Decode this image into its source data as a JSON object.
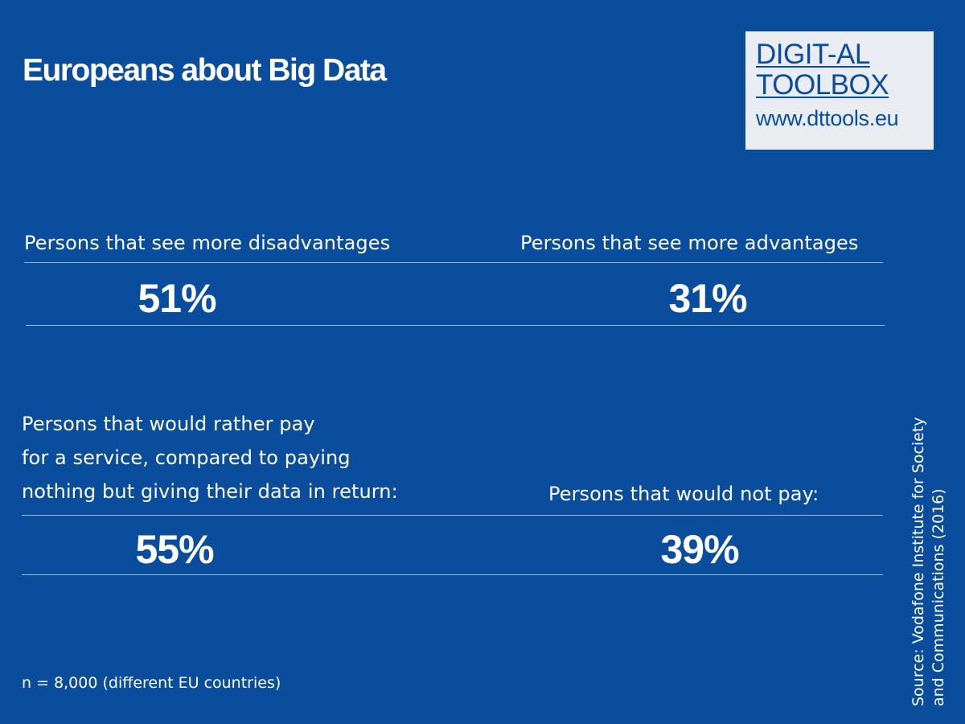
{
  "title": "Europeans about Big Data",
  "logo": {
    "line1": "DIGIT-AL",
    "line2": "TOOLBOX",
    "url": "www.dttools.eu"
  },
  "stats": {
    "disadvantages": {
      "label": "Persons that see more disadvantages",
      "value": "51%"
    },
    "advantages": {
      "label": "Persons that see more advantages",
      "value": "31%"
    },
    "pay": {
      "label_lines": [
        "Persons that would rather pay",
        "for a service, compared to paying",
        "nothing but giving their data in return:"
      ],
      "value": "55%"
    },
    "not_pay": {
      "label": "Persons that would not pay:",
      "value": "39%"
    }
  },
  "footnote": "n = 8,000 (different EU countries)",
  "source": {
    "line1": "Source:  Vodafone  Institute  for  Society",
    "line2": "and Communications (2016)"
  },
  "colors": {
    "background": "#0a4d9c",
    "logo_background": "#e9edf1",
    "text": "#ffffff"
  }
}
